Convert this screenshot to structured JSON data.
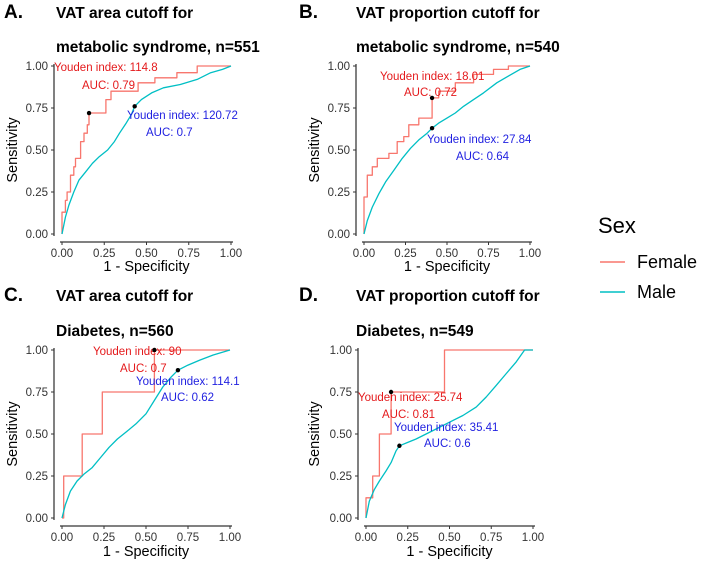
{
  "colors": {
    "female": "#F8766D",
    "male": "#00BFC4",
    "female_text": "#E41A1C",
    "male_text": "#1F1FE0"
  },
  "legend": {
    "title": "Sex",
    "items": [
      {
        "label": "Female",
        "color": "#F8766D"
      },
      {
        "label": "Male",
        "color": "#00BFC4"
      }
    ]
  },
  "chart_data": [
    {
      "type": "line",
      "panel": "A.",
      "title_line1": "VAT area cutoff for",
      "title_line2": "metabolic syndrome, n=551",
      "xlabel": "1 - Specificity",
      "ylabel": "Sensitivity",
      "xlim": [
        0,
        1
      ],
      "ylim": [
        0,
        1
      ],
      "xticks": [
        "0.00",
        "0.25",
        "0.50",
        "0.75",
        "1.00"
      ],
      "yticks": [
        "0.00",
        "0.25",
        "0.50",
        "0.75",
        "1.00"
      ],
      "series": [
        {
          "name": "Female",
          "points": [
            [
              0,
              0
            ],
            [
              0,
              0.13
            ],
            [
              0.02,
              0.13
            ],
            [
              0.02,
              0.2
            ],
            [
              0.03,
              0.2
            ],
            [
              0.03,
              0.25
            ],
            [
              0.05,
              0.25
            ],
            [
              0.05,
              0.35
            ],
            [
              0.07,
              0.35
            ],
            [
              0.07,
              0.4
            ],
            [
              0.08,
              0.4
            ],
            [
              0.08,
              0.45
            ],
            [
              0.11,
              0.45
            ],
            [
              0.11,
              0.55
            ],
            [
              0.13,
              0.55
            ],
            [
              0.13,
              0.6
            ],
            [
              0.15,
              0.6
            ],
            [
              0.15,
              0.65
            ],
            [
              0.16,
              0.65
            ],
            [
              0.16,
              0.72
            ],
            [
              0.26,
              0.72
            ],
            [
              0.26,
              0.8
            ],
            [
              0.29,
              0.8
            ],
            [
              0.29,
              0.85
            ],
            [
              0.45,
              0.85
            ],
            [
              0.45,
              0.9
            ],
            [
              0.55,
              0.9
            ],
            [
              0.55,
              0.93
            ],
            [
              0.68,
              0.93
            ],
            [
              0.68,
              0.96
            ],
            [
              0.8,
              0.96
            ],
            [
              0.8,
              1.0
            ],
            [
              1.0,
              1.0
            ]
          ]
        },
        {
          "name": "Male",
          "points": [
            [
              0,
              0
            ],
            [
              0.02,
              0.1
            ],
            [
              0.04,
              0.17
            ],
            [
              0.07,
              0.25
            ],
            [
              0.1,
              0.32
            ],
            [
              0.14,
              0.37
            ],
            [
              0.18,
              0.42
            ],
            [
              0.22,
              0.46
            ],
            [
              0.27,
              0.5
            ],
            [
              0.31,
              0.55
            ],
            [
              0.34,
              0.6
            ],
            [
              0.38,
              0.66
            ],
            [
              0.41,
              0.71
            ],
            [
              0.43,
              0.76
            ],
            [
              0.47,
              0.8
            ],
            [
              0.53,
              0.84
            ],
            [
              0.6,
              0.87
            ],
            [
              0.7,
              0.89
            ],
            [
              0.8,
              0.92
            ],
            [
              0.88,
              0.96
            ],
            [
              0.95,
              0.98
            ],
            [
              1.0,
              1.0
            ]
          ]
        }
      ],
      "annotations": [
        {
          "series": "Female",
          "line1": "Youden index: 114.8",
          "line2": "AUC: 0.79",
          "point": [
            0.16,
            0.72
          ]
        },
        {
          "series": "Male",
          "line1": "Youden index: 120.72",
          "line2": "AUC: 0.7",
          "point": [
            0.43,
            0.76
          ]
        }
      ]
    },
    {
      "type": "line",
      "panel": "B.",
      "title_line1": "VAT proportion cutoff for",
      "title_line2": "metabolic syndrome, n=540",
      "xlabel": "1 - Specificity",
      "ylabel": "Sensitivity",
      "xlim": [
        0,
        1
      ],
      "ylim": [
        0,
        1
      ],
      "xticks": [
        "0.00",
        "0.25",
        "0.50",
        "0.75",
        "1.00"
      ],
      "yticks": [
        "0.00",
        "0.25",
        "0.50",
        "0.75",
        "1.00"
      ],
      "series": [
        {
          "name": "Female",
          "points": [
            [
              0,
              0
            ],
            [
              0,
              0.22
            ],
            [
              0.02,
              0.22
            ],
            [
              0.02,
              0.35
            ],
            [
              0.05,
              0.35
            ],
            [
              0.05,
              0.4
            ],
            [
              0.08,
              0.4
            ],
            [
              0.08,
              0.45
            ],
            [
              0.15,
              0.45
            ],
            [
              0.15,
              0.48
            ],
            [
              0.2,
              0.48
            ],
            [
              0.2,
              0.55
            ],
            [
              0.24,
              0.55
            ],
            [
              0.24,
              0.58
            ],
            [
              0.27,
              0.58
            ],
            [
              0.27,
              0.65
            ],
            [
              0.33,
              0.65
            ],
            [
              0.33,
              0.69
            ],
            [
              0.41,
              0.69
            ],
            [
              0.41,
              0.81
            ],
            [
              0.45,
              0.81
            ],
            [
              0.45,
              0.85
            ],
            [
              0.55,
              0.85
            ],
            [
              0.55,
              0.9
            ],
            [
              0.66,
              0.9
            ],
            [
              0.66,
              0.95
            ],
            [
              0.78,
              0.95
            ],
            [
              0.78,
              0.98
            ],
            [
              0.87,
              0.98
            ],
            [
              0.87,
              1.0
            ],
            [
              1.0,
              1.0
            ]
          ]
        },
        {
          "name": "Male",
          "points": [
            [
              0,
              0
            ],
            [
              0.02,
              0.08
            ],
            [
              0.05,
              0.16
            ],
            [
              0.09,
              0.24
            ],
            [
              0.13,
              0.31
            ],
            [
              0.18,
              0.38
            ],
            [
              0.23,
              0.45
            ],
            [
              0.28,
              0.51
            ],
            [
              0.33,
              0.56
            ],
            [
              0.38,
              0.6
            ],
            [
              0.41,
              0.63
            ],
            [
              0.45,
              0.66
            ],
            [
              0.5,
              0.69
            ],
            [
              0.55,
              0.72
            ],
            [
              0.6,
              0.76
            ],
            [
              0.66,
              0.8
            ],
            [
              0.72,
              0.84
            ],
            [
              0.8,
              0.9
            ],
            [
              0.87,
              0.94
            ],
            [
              0.94,
              0.98
            ],
            [
              1.0,
              1.0
            ]
          ]
        }
      ],
      "annotations": [
        {
          "series": "Female",
          "line1": "Youden index: 18.01",
          "line2": "AUC: 0.72",
          "point": [
            0.41,
            0.81
          ]
        },
        {
          "series": "Male",
          "line1": "Youden index: 27.84",
          "line2": "AUC: 0.64",
          "point": [
            0.41,
            0.63
          ]
        }
      ]
    },
    {
      "type": "line",
      "panel": "C.",
      "title_line1": "VAT area cutoff for",
      "title_line2": "Diabetes, n=560",
      "xlabel": "1 - Specificity",
      "ylabel": "Sensitivity",
      "xlim": [
        0,
        1
      ],
      "ylim": [
        0,
        1
      ],
      "xticks": [
        "0.00",
        "0.25",
        "0.50",
        "0.75",
        "1.00"
      ],
      "yticks": [
        "0.00",
        "0.25",
        "0.50",
        "0.75",
        "1.00"
      ],
      "series": [
        {
          "name": "Female",
          "points": [
            [
              0,
              0
            ],
            [
              0.01,
              0
            ],
            [
              0.01,
              0.25
            ],
            [
              0.12,
              0.25
            ],
            [
              0.12,
              0.5
            ],
            [
              0.24,
              0.5
            ],
            [
              0.24,
              0.75
            ],
            [
              0.55,
              0.75
            ],
            [
              0.55,
              1.0
            ],
            [
              1.0,
              1.0
            ]
          ]
        },
        {
          "name": "Male",
          "points": [
            [
              0,
              0
            ],
            [
              0.02,
              0.08
            ],
            [
              0.05,
              0.16
            ],
            [
              0.09,
              0.22
            ],
            [
              0.13,
              0.26
            ],
            [
              0.18,
              0.3
            ],
            [
              0.23,
              0.36
            ],
            [
              0.28,
              0.42
            ],
            [
              0.33,
              0.47
            ],
            [
              0.38,
              0.51
            ],
            [
              0.44,
              0.56
            ],
            [
              0.5,
              0.62
            ],
            [
              0.55,
              0.7
            ],
            [
              0.6,
              0.78
            ],
            [
              0.65,
              0.84
            ],
            [
              0.69,
              0.88
            ],
            [
              0.75,
              0.91
            ],
            [
              0.82,
              0.94
            ],
            [
              0.9,
              0.97
            ],
            [
              1.0,
              1.0
            ]
          ]
        }
      ],
      "annotations": [
        {
          "series": "Female",
          "line1": "Youden index: 90",
          "line2": "AUC: 0.7",
          "point": [
            0.55,
            1.0
          ]
        },
        {
          "series": "Male",
          "line1": "Youden index: 114.1",
          "line2": "AUC: 0.62",
          "point": [
            0.69,
            0.88
          ]
        }
      ]
    },
    {
      "type": "line",
      "panel": "D.",
      "title_line1": "VAT proportion cutoff for",
      "title_line2": "Diabetes, n=549",
      "xlabel": "1 - Specificity",
      "ylabel": "Sensitivity",
      "xlim": [
        0,
        1
      ],
      "ylim": [
        0,
        1
      ],
      "xticks": [
        "0.00",
        "0.25",
        "0.50",
        "0.75",
        "1.00"
      ],
      "yticks": [
        "0.00",
        "0.25",
        "0.50",
        "0.75",
        "1.00"
      ],
      "series": [
        {
          "name": "Female",
          "points": [
            [
              0,
              0
            ],
            [
              0,
              0.12
            ],
            [
              0.04,
              0.12
            ],
            [
              0.04,
              0.25
            ],
            [
              0.08,
              0.25
            ],
            [
              0.08,
              0.5
            ],
            [
              0.15,
              0.5
            ],
            [
              0.15,
              0.75
            ],
            [
              0.47,
              0.75
            ],
            [
              0.47,
              1.0
            ],
            [
              1.0,
              1.0
            ]
          ]
        },
        {
          "name": "Male",
          "points": [
            [
              0,
              0
            ],
            [
              0.02,
              0.1
            ],
            [
              0.05,
              0.17
            ],
            [
              0.08,
              0.22
            ],
            [
              0.12,
              0.28
            ],
            [
              0.15,
              0.33
            ],
            [
              0.18,
              0.4
            ],
            [
              0.2,
              0.43
            ],
            [
              0.25,
              0.45
            ],
            [
              0.3,
              0.47
            ],
            [
              0.36,
              0.5
            ],
            [
              0.42,
              0.53
            ],
            [
              0.5,
              0.57
            ],
            [
              0.58,
              0.61
            ],
            [
              0.66,
              0.66
            ],
            [
              0.72,
              0.72
            ],
            [
              0.78,
              0.79
            ],
            [
              0.84,
              0.86
            ],
            [
              0.9,
              0.93
            ],
            [
              0.95,
              1.0
            ],
            [
              1.0,
              1.0
            ]
          ]
        }
      ],
      "annotations": [
        {
          "series": "Female",
          "line1": "Youden index: 25.74",
          "line2": "AUC: 0.81",
          "point": [
            0.15,
            0.75
          ]
        },
        {
          "series": "Male",
          "line1": "Youden index: 35.41",
          "line2": "AUC: 0.6",
          "point": [
            0.2,
            0.43
          ]
        }
      ]
    }
  ]
}
